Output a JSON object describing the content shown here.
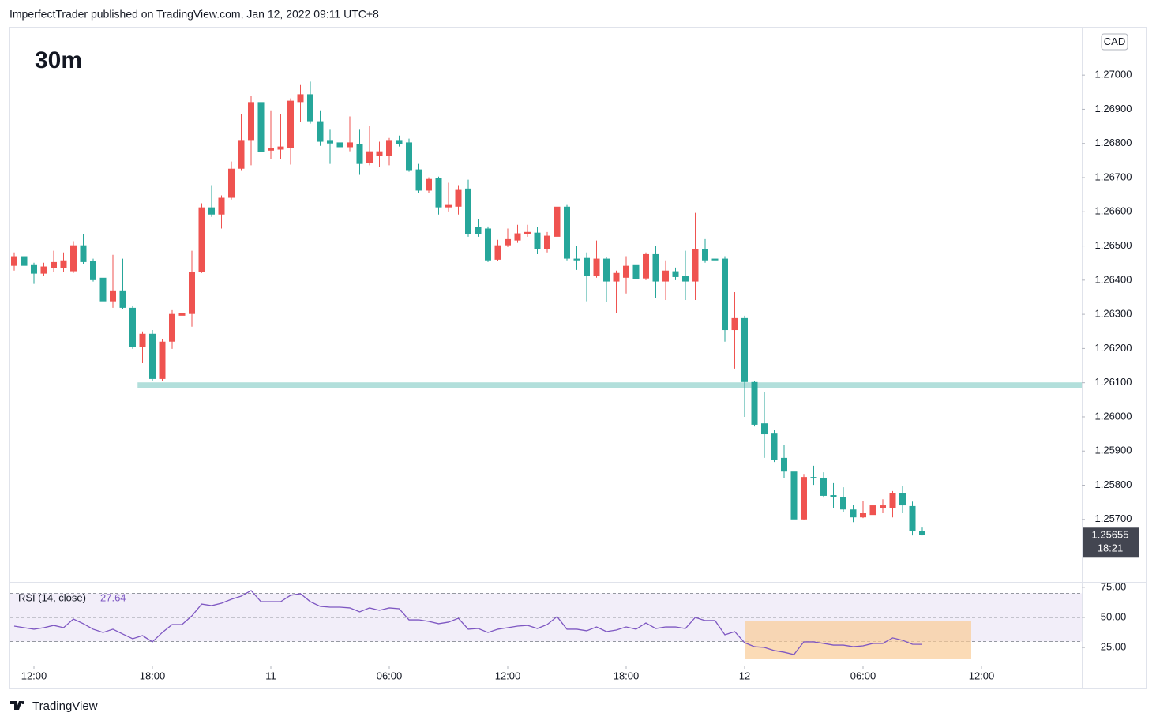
{
  "header": {
    "text": "ImperfectTrader published on TradingView.com, Jan 12, 2022 09:11 UTC+8"
  },
  "footer": {
    "brand": "TradingView"
  },
  "chart_data": [
    {
      "type": "candlestick",
      "title": "30m",
      "currency": "CAD",
      "countdown": "18:21",
      "up_color": "#ef5350",
      "down_color": "#26a69a",
      "open": [
        1.26442,
        1.2647,
        1.26444,
        1.26419,
        1.26435,
        1.26435,
        1.26426,
        1.26502,
        1.26456,
        1.26407,
        1.26338,
        1.2637,
        1.26319,
        1.26204,
        1.26243,
        1.26111,
        1.2622,
        1.26296,
        1.26301,
        1.26423,
        1.26613,
        1.26592,
        1.26641,
        1.26726,
        1.2681,
        1.26921,
        1.26779,
        1.26782,
        1.26786,
        1.26921,
        1.26944,
        1.26865,
        1.2681,
        1.26803,
        1.26789,
        1.26798,
        1.26742,
        1.26763,
        1.26763,
        1.2681,
        1.26803,
        1.26724,
        1.26662,
        1.26699,
        1.26613,
        1.26615,
        1.26668,
        1.26555,
        1.26551,
        1.2646,
        1.26502,
        1.26516,
        1.26534,
        1.26539,
        1.2649,
        1.26527,
        1.26615,
        1.26463,
        1.26465,
        1.26412,
        1.26463,
        1.26396,
        1.26407,
        1.26444,
        1.26405,
        1.26476,
        1.26396,
        1.26426,
        1.26412,
        1.26396,
        1.2649,
        1.26463,
        1.26463,
        1.26254,
        1.26289,
        1.26102,
        1.25981,
        1.25951,
        1.2588,
        1.2584,
        1.257,
        1.25824,
        1.25822,
        1.25771,
        1.25766,
        1.25729,
        1.25706,
        1.25713,
        1.25734,
        1.25734,
        1.25778,
        1.25739,
        1.25667
      ],
      "high": [
        1.26481,
        1.2649,
        1.26451,
        1.26451,
        1.26486,
        1.26481,
        1.26514,
        1.26534,
        1.26463,
        1.26412,
        1.26474,
        1.26463,
        1.26324,
        1.2625,
        1.26254,
        1.26227,
        1.26312,
        1.26319,
        1.26486,
        1.26625,
        1.26678,
        1.26648,
        1.26747,
        1.26886,
        1.26939,
        1.26948,
        1.26897,
        1.26886,
        1.26932,
        1.26971,
        1.26981,
        1.26897,
        1.2684,
        1.26814,
        1.26879,
        1.2684,
        1.26851,
        1.26805,
        1.26816,
        1.26823,
        1.26814,
        1.2674,
        1.26701,
        1.26703,
        1.26685,
        1.26678,
        1.26694,
        1.26578,
        1.26557,
        1.26518,
        1.26551,
        1.26562,
        1.26562,
        1.26555,
        1.26541,
        1.26664,
        1.2662,
        1.265,
        1.26481,
        1.26516,
        1.26467,
        1.26428,
        1.2647,
        1.26474,
        1.26481,
        1.265,
        1.26458,
        1.26437,
        1.26486,
        1.26597,
        1.2652,
        1.26638,
        1.2647,
        1.26365,
        1.26296,
        1.26106,
        1.26072,
        1.25961,
        1.25919,
        1.25852,
        1.25833,
        1.25857,
        1.25838,
        1.25806,
        1.25794,
        1.25741,
        1.25755,
        1.25769,
        1.25759,
        1.25783,
        1.25799,
        1.25752,
        1.25676
      ],
      "low": [
        1.26428,
        1.26435,
        1.26389,
        1.26412,
        1.26423,
        1.26423,
        1.26421,
        1.26446,
        1.26396,
        1.26308,
        1.26319,
        1.26315,
        1.26199,
        1.26157,
        1.26106,
        1.26106,
        1.26199,
        1.26257,
        1.26264,
        1.26421,
        1.26585,
        1.26551,
        1.26636,
        1.26722,
        1.26736,
        1.2677,
        1.26754,
        1.26754,
        1.26738,
        1.26863,
        1.26858,
        1.26793,
        1.2674,
        1.26782,
        1.26777,
        1.26708,
        1.26736,
        1.26731,
        1.26736,
        1.26791,
        1.26717,
        1.26655,
        1.26655,
        1.26592,
        1.26601,
        1.26592,
        1.26527,
        1.26527,
        1.26453,
        1.26456,
        1.26497,
        1.26509,
        1.26527,
        1.26476,
        1.26481,
        1.2652,
        1.26458,
        1.2643,
        1.26338,
        1.26407,
        1.26335,
        1.26303,
        1.26361,
        1.26398,
        1.264,
        1.26347,
        1.26342,
        1.264,
        1.26342,
        1.26342,
        1.26451,
        1.26453,
        1.2622,
        1.26141,
        1.26,
        1.25972,
        1.2588,
        1.25868,
        1.2582,
        1.25676,
        1.25698,
        1.25801,
        1.25764,
        1.25734,
        1.25722,
        1.25692,
        1.25704,
        1.25709,
        1.25718,
        1.25706,
        1.25718,
        1.25653,
        1.25653
      ],
      "close": [
        1.2647,
        1.26442,
        1.26419,
        1.2644,
        1.26453,
        1.26458,
        1.26502,
        1.26453,
        1.264,
        1.26338,
        1.2637,
        1.26319,
        1.26204,
        1.26243,
        1.26111,
        1.2622,
        1.26301,
        1.26303,
        1.26423,
        1.26613,
        1.26592,
        1.26641,
        1.26726,
        1.2681,
        1.26921,
        1.26775,
        1.26786,
        1.26791,
        1.26925,
        1.26944,
        1.26865,
        1.26805,
        1.268,
        1.26789,
        1.26803,
        1.2674,
        1.26777,
        1.26777,
        1.2681,
        1.26798,
        1.26722,
        1.26662,
        1.26696,
        1.26613,
        1.2662,
        1.26664,
        1.26534,
        1.26534,
        1.26458,
        1.26502,
        1.2652,
        1.26537,
        1.26541,
        1.2649,
        1.2653,
        1.26615,
        1.26463,
        1.26458,
        1.26412,
        1.26463,
        1.26396,
        1.26421,
        1.26442,
        1.26402,
        1.26476,
        1.26396,
        1.26428,
        1.26409,
        1.26396,
        1.2649,
        1.26458,
        1.26458,
        1.26254,
        1.26289,
        1.26102,
        1.25977,
        1.25949,
        1.25875,
        1.2584,
        1.257,
        1.25824,
        1.2582,
        1.25769,
        1.25766,
        1.25729,
        1.25706,
        1.25718,
        1.25741,
        1.25741,
        1.25778,
        1.25741,
        1.25667,
        1.25655
      ],
      "hline": {
        "value": 1.26093,
        "x_start": 13,
        "color": "#b2dfdb"
      },
      "ylim": [
        1.25517,
        1.27139
      ],
      "yticks": [
        {
          "value": 1.257,
          "label": "1.25700"
        },
        {
          "value": 1.258,
          "label": "1.25800"
        },
        {
          "value": 1.259,
          "label": "1.25900"
        },
        {
          "value": 1.26,
          "label": "1.26000"
        },
        {
          "value": 1.261,
          "label": "1.26100"
        },
        {
          "value": 1.262,
          "label": "1.26200"
        },
        {
          "value": 1.263,
          "label": "1.26300"
        },
        {
          "value": 1.264,
          "label": "1.26400"
        },
        {
          "value": 1.265,
          "label": "1.26500"
        },
        {
          "value": 1.266,
          "label": "1.26600"
        },
        {
          "value": 1.267,
          "label": "1.26700"
        },
        {
          "value": 1.268,
          "label": "1.26800"
        },
        {
          "value": 1.269,
          "label": "1.26900"
        },
        {
          "value": 1.27,
          "label": "1.27000"
        }
      ],
      "xlim": [
        -0.48,
        108.16
      ],
      "xticks": [
        {
          "value": 2,
          "label": "12:00"
        },
        {
          "value": 14,
          "label": "18:00"
        },
        {
          "value": 26,
          "label": "11"
        },
        {
          "value": 38,
          "label": "06:00"
        },
        {
          "value": 50,
          "label": "12:00"
        },
        {
          "value": 62,
          "label": "18:00"
        },
        {
          "value": 74,
          "label": "12"
        },
        {
          "value": 86,
          "label": "06:00"
        },
        {
          "value": 98,
          "label": "12:00"
        }
      ]
    },
    {
      "type": "line",
      "title": "RSI (14, close)",
      "color": "#7e57c2",
      "values": [
        42.8,
        41.5,
        40.2,
        41.5,
        43.4,
        41.5,
        48.7,
        44.8,
        40.2,
        37.5,
        40.2,
        36.2,
        32.3,
        34.9,
        29.7,
        37.5,
        44.1,
        44.1,
        51.3,
        61.1,
        59.8,
        61.8,
        65.1,
        67.7,
        72.3,
        63.1,
        63.1,
        63.1,
        68.4,
        69.7,
        63.1,
        59.2,
        58.5,
        58.5,
        57.9,
        54.6,
        57.9,
        55.9,
        57.9,
        57.2,
        48.0,
        48.0,
        46.7,
        44.8,
        46.1,
        49.3,
        40.2,
        40.8,
        37.5,
        40.2,
        41.5,
        42.8,
        43.4,
        40.8,
        44.1,
        50.7,
        40.2,
        40.2,
        38.9,
        42.1,
        38.2,
        39.5,
        42.1,
        40.2,
        45.4,
        40.8,
        42.1,
        42.1,
        40.8,
        50.0,
        47.4,
        47.4,
        35.6,
        38.2,
        29.0,
        25.7,
        25.1,
        22.5,
        21.1,
        19.2,
        29.7,
        29.7,
        28.4,
        27.0,
        27.0,
        25.7,
        26.4,
        28.4,
        28.4,
        33.0,
        31.0,
        27.7,
        27.64
      ],
      "levels": [
        70,
        50,
        30
      ],
      "band_color": "#7e57c2",
      "ylim": [
        10,
        79.5
      ],
      "yticks": [
        {
          "value": 25,
          "label": "25.00"
        },
        {
          "value": 50,
          "label": "50.00"
        },
        {
          "value": 75,
          "label": "75.00"
        }
      ]
    }
  ]
}
